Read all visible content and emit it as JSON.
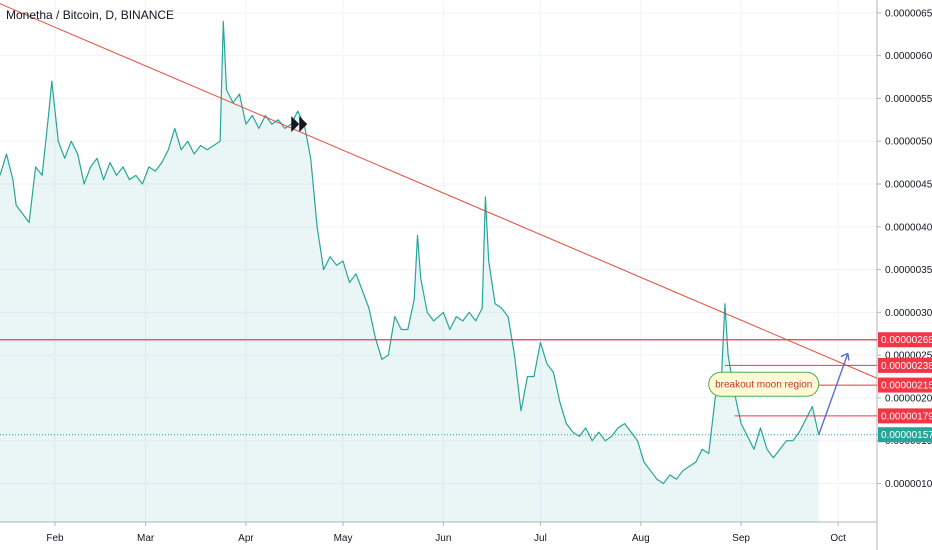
{
  "header": {
    "title": "Monetha / Bitcoin, D, BINANCE"
  },
  "chart_data": {
    "type": "area",
    "title": "Monetha / Bitcoin, D, BINANCE",
    "xlabel": "",
    "ylabel": "",
    "x_ticks": [
      "Feb",
      "Mar",
      "Apr",
      "May",
      "Jun",
      "Jul",
      "Aug",
      "Sep",
      "Oct"
    ],
    "y_ticks": [
      "0.00000650",
      "0.00000600",
      "0.00000550",
      "0.00000500",
      "0.00000450",
      "0.00000400",
      "0.00000350",
      "0.00000300",
      "0.00000250",
      "0.00000200",
      "0.00000150",
      "0.00000100"
    ],
    "ylim": [
      5.5e-07,
      6.65e-06
    ],
    "xlim": [
      "2018-01-15",
      "2018-10-13"
    ],
    "grid": true,
    "series": [
      {
        "color": "#26a69a",
        "points": [
          [
            "2018-01-15",
            4.6e-06
          ],
          [
            "2018-01-17",
            4.85e-06
          ],
          [
            "2018-01-19",
            4.55e-06
          ],
          [
            "2018-01-20",
            4.25e-06
          ],
          [
            "2018-01-22",
            4.15e-06
          ],
          [
            "2018-01-24",
            4.05e-06
          ],
          [
            "2018-01-26",
            4.7e-06
          ],
          [
            "2018-01-28",
            4.6e-06
          ],
          [
            "2018-01-30",
            5.3e-06
          ],
          [
            "2018-01-31",
            5.7e-06
          ],
          [
            "2018-02-02",
            5e-06
          ],
          [
            "2018-02-04",
            4.8e-06
          ],
          [
            "2018-02-06",
            5e-06
          ],
          [
            "2018-02-08",
            4.85e-06
          ],
          [
            "2018-02-10",
            4.5e-06
          ],
          [
            "2018-02-12",
            4.7e-06
          ],
          [
            "2018-02-14",
            4.8e-06
          ],
          [
            "2018-02-16",
            4.55e-06
          ],
          [
            "2018-02-18",
            4.75e-06
          ],
          [
            "2018-02-20",
            4.6e-06
          ],
          [
            "2018-02-22",
            4.7e-06
          ],
          [
            "2018-02-24",
            4.55e-06
          ],
          [
            "2018-02-26",
            4.6e-06
          ],
          [
            "2018-02-28",
            4.5e-06
          ],
          [
            "2018-03-02",
            4.7e-06
          ],
          [
            "2018-03-04",
            4.65e-06
          ],
          [
            "2018-03-06",
            4.75e-06
          ],
          [
            "2018-03-08",
            4.9e-06
          ],
          [
            "2018-03-10",
            5.15e-06
          ],
          [
            "2018-03-12",
            4.9e-06
          ],
          [
            "2018-03-14",
            5e-06
          ],
          [
            "2018-03-16",
            4.85e-06
          ],
          [
            "2018-03-18",
            4.95e-06
          ],
          [
            "2018-03-20",
            4.9e-06
          ],
          [
            "2018-03-22",
            4.95e-06
          ],
          [
            "2018-03-24",
            5e-06
          ],
          [
            "2018-03-25",
            6.4e-06
          ],
          [
            "2018-03-26",
            5.6e-06
          ],
          [
            "2018-03-28",
            5.45e-06
          ],
          [
            "2018-03-30",
            5.55e-06
          ],
          [
            "2018-04-01",
            5.2e-06
          ],
          [
            "2018-04-03",
            5.3e-06
          ],
          [
            "2018-04-05",
            5.15e-06
          ],
          [
            "2018-04-07",
            5.3e-06
          ],
          [
            "2018-04-09",
            5.2e-06
          ],
          [
            "2018-04-11",
            5.25e-06
          ],
          [
            "2018-04-13",
            5.15e-06
          ],
          [
            "2018-04-15",
            5.2e-06
          ],
          [
            "2018-04-17",
            5.35e-06
          ],
          [
            "2018-04-19",
            5.2e-06
          ],
          [
            "2018-04-21",
            4.8e-06
          ],
          [
            "2018-04-23",
            4e-06
          ],
          [
            "2018-04-25",
            3.5e-06
          ],
          [
            "2018-04-27",
            3.65e-06
          ],
          [
            "2018-04-29",
            3.55e-06
          ],
          [
            "2018-05-01",
            3.6e-06
          ],
          [
            "2018-05-03",
            3.35e-06
          ],
          [
            "2018-05-05",
            3.45e-06
          ],
          [
            "2018-05-07",
            3.25e-06
          ],
          [
            "2018-05-09",
            3.05e-06
          ],
          [
            "2018-05-11",
            2.7e-06
          ],
          [
            "2018-05-13",
            2.45e-06
          ],
          [
            "2018-05-15",
            2.5e-06
          ],
          [
            "2018-05-17",
            2.95e-06
          ],
          [
            "2018-05-19",
            2.8e-06
          ],
          [
            "2018-05-21",
            2.8e-06
          ],
          [
            "2018-05-23",
            3.15e-06
          ],
          [
            "2018-05-24",
            3.9e-06
          ],
          [
            "2018-05-25",
            3.4e-06
          ],
          [
            "2018-05-27",
            3e-06
          ],
          [
            "2018-05-29",
            2.9e-06
          ],
          [
            "2018-06-01",
            3e-06
          ],
          [
            "2018-06-03",
            2.8e-06
          ],
          [
            "2018-06-05",
            2.95e-06
          ],
          [
            "2018-06-07",
            2.9e-06
          ],
          [
            "2018-06-09",
            3e-06
          ],
          [
            "2018-06-11",
            2.9e-06
          ],
          [
            "2018-06-13",
            3.05e-06
          ],
          [
            "2018-06-14",
            4.35e-06
          ],
          [
            "2018-06-15",
            3.6e-06
          ],
          [
            "2018-06-17",
            3.1e-06
          ],
          [
            "2018-06-19",
            3.05e-06
          ],
          [
            "2018-06-21",
            2.95e-06
          ],
          [
            "2018-06-23",
            2.5e-06
          ],
          [
            "2018-06-25",
            1.85e-06
          ],
          [
            "2018-06-27",
            2.25e-06
          ],
          [
            "2018-06-29",
            2.25e-06
          ],
          [
            "2018-07-01",
            2.65e-06
          ],
          [
            "2018-07-03",
            2.4e-06
          ],
          [
            "2018-07-05",
            2.3e-06
          ],
          [
            "2018-07-07",
            1.95e-06
          ],
          [
            "2018-07-09",
            1.7e-06
          ],
          [
            "2018-07-11",
            1.6e-06
          ],
          [
            "2018-07-13",
            1.55e-06
          ],
          [
            "2018-07-15",
            1.65e-06
          ],
          [
            "2018-07-17",
            1.5e-06
          ],
          [
            "2018-07-19",
            1.6e-06
          ],
          [
            "2018-07-21",
            1.5e-06
          ],
          [
            "2018-07-23",
            1.55e-06
          ],
          [
            "2018-07-25",
            1.65e-06
          ],
          [
            "2018-07-27",
            1.7e-06
          ],
          [
            "2018-07-29",
            1.6e-06
          ],
          [
            "2018-07-31",
            1.5e-06
          ],
          [
            "2018-08-02",
            1.25e-06
          ],
          [
            "2018-08-04",
            1.15e-06
          ],
          [
            "2018-08-06",
            1.05e-06
          ],
          [
            "2018-08-08",
            1e-06
          ],
          [
            "2018-08-10",
            1.1e-06
          ],
          [
            "2018-08-12",
            1.05e-06
          ],
          [
            "2018-08-14",
            1.15e-06
          ],
          [
            "2018-08-16",
            1.2e-06
          ],
          [
            "2018-08-18",
            1.25e-06
          ],
          [
            "2018-08-20",
            1.4e-06
          ],
          [
            "2018-08-22",
            1.35e-06
          ],
          [
            "2018-08-24",
            2e-06
          ],
          [
            "2018-08-26",
            2.3e-06
          ],
          [
            "2018-08-27",
            3.1e-06
          ],
          [
            "2018-08-28",
            2.5e-06
          ],
          [
            "2018-08-30",
            2.05e-06
          ],
          [
            "2018-09-01",
            1.7e-06
          ],
          [
            "2018-09-03",
            1.55e-06
          ],
          [
            "2018-09-05",
            1.4e-06
          ],
          [
            "2018-09-07",
            1.65e-06
          ],
          [
            "2018-09-09",
            1.4e-06
          ],
          [
            "2018-09-11",
            1.3e-06
          ],
          [
            "2018-09-13",
            1.4e-06
          ],
          [
            "2018-09-15",
            1.5e-06
          ],
          [
            "2018-09-17",
            1.5e-06
          ],
          [
            "2018-09-19",
            1.6e-06
          ],
          [
            "2018-09-21",
            1.75e-06
          ],
          [
            "2018-09-23",
            1.9e-06
          ],
          [
            "2018-09-25",
            1.57e-06
          ]
        ]
      }
    ],
    "price_tags": [
      {
        "label": "0.00000268",
        "value": 2.68e-06,
        "color": "#f23645"
      },
      {
        "label": "0.00000238",
        "value": 2.38e-06,
        "color": "#f23645"
      },
      {
        "label": "0.00000215",
        "value": 2.15e-06,
        "color": "#f23645"
      },
      {
        "label": "0.00000179",
        "value": 1.79e-06,
        "color": "#f23645"
      },
      {
        "label": "0.00000157",
        "value": 1.57e-06,
        "color": "#26a69a"
      }
    ],
    "annotation": {
      "text": "breakout moon region"
    }
  }
}
